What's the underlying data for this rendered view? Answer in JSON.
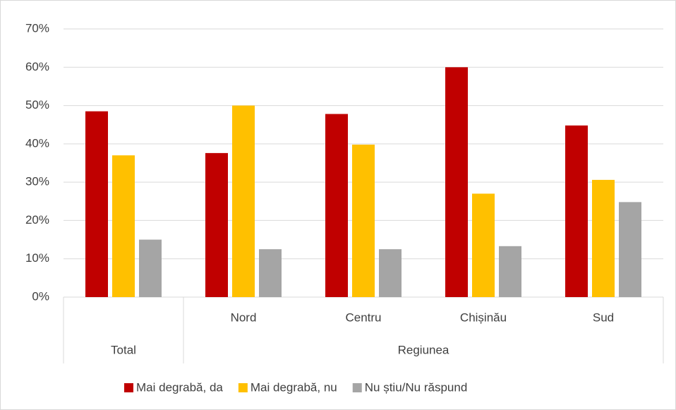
{
  "chart_data": {
    "type": "bar",
    "groups": [
      {
        "label": "Total",
        "categories": [
          null
        ]
      },
      {
        "label": "Regiunea",
        "categories": [
          "Nord",
          "Centru",
          "Chișinău",
          "Sud"
        ]
      }
    ],
    "series": [
      {
        "name": "Mai degrabă, da",
        "color": "#c00000",
        "values": [
          48.5,
          37.6,
          47.8,
          60,
          44.8
        ]
      },
      {
        "name": "Mai degrabă, nu",
        "color": "#ffc000",
        "values": [
          37,
          50,
          39.8,
          27,
          30.6
        ]
      },
      {
        "name": "Nu știu/Nu răspund",
        "color": "#a5a5a5",
        "values": [
          15,
          12.5,
          12.5,
          13.3,
          24.8
        ]
      }
    ],
    "ylim": [
      0,
      70
    ],
    "yticks": [
      {
        "value": 0,
        "label": "0%"
      },
      {
        "value": 10,
        "label": "10%"
      },
      {
        "value": 20,
        "label": "20%"
      },
      {
        "value": 30,
        "label": "30%"
      },
      {
        "value": 40,
        "label": "40%"
      },
      {
        "value": 50,
        "label": "50%"
      },
      {
        "value": 60,
        "label": "60%"
      },
      {
        "value": 70,
        "label": "70%"
      }
    ],
    "grid": true,
    "legend": "bottom"
  }
}
